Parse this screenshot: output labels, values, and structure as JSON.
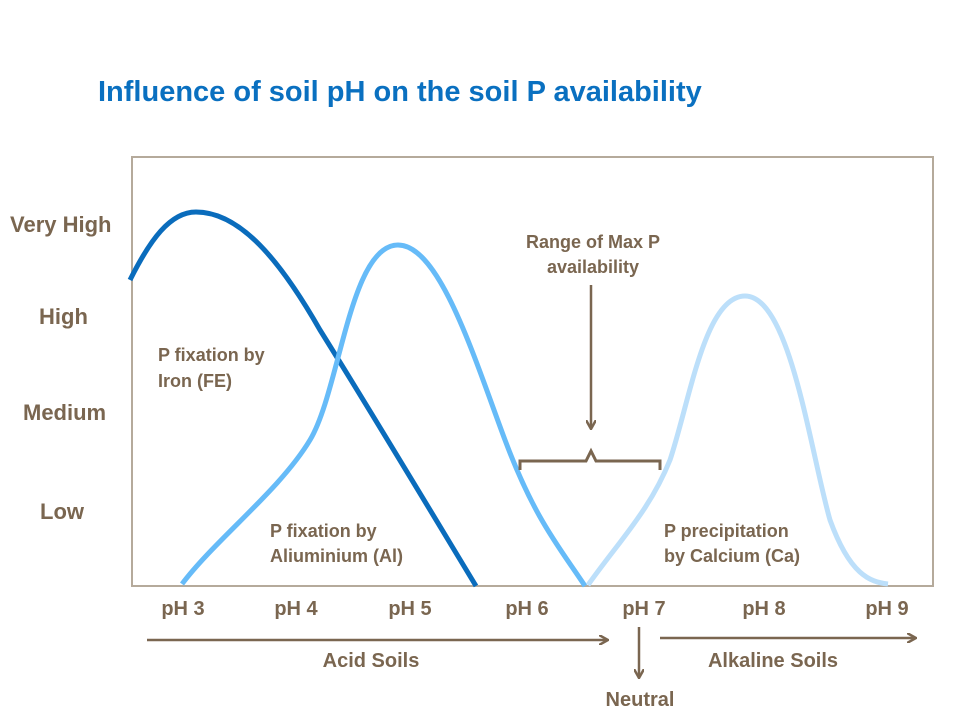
{
  "title": "Influence of soil pH on the soil P availability",
  "y_levels": [
    "Very High",
    "High",
    "Medium",
    "Low"
  ],
  "x_ticks": [
    "pH 3",
    "pH 4",
    "pH 5",
    "pH 6",
    "pH 7",
    "pH 8",
    "pH 9"
  ],
  "curves": [
    {
      "label_line1": "P fixation by",
      "label_line2": "Iron (FE)",
      "color": "#0a6cbc"
    },
    {
      "label_line1": "P fixation by",
      "label_line2": "Aliuminium  (Al)",
      "color": "#66bbf8"
    },
    {
      "label_line1": "P precipitation",
      "label_line2": "by Calcium (Ca)",
      "color": "#bcdffa"
    }
  ],
  "annotation": {
    "line1": "Range of Max P",
    "line2": "availability"
  },
  "bottom": {
    "acid": "Acid Soils",
    "alkaline": "Alkaline Soils",
    "neutral": "Neutral"
  },
  "colors": {
    "text": "#7a6650",
    "title": "#0a70c0",
    "frame": "#b5aa9b"
  }
}
